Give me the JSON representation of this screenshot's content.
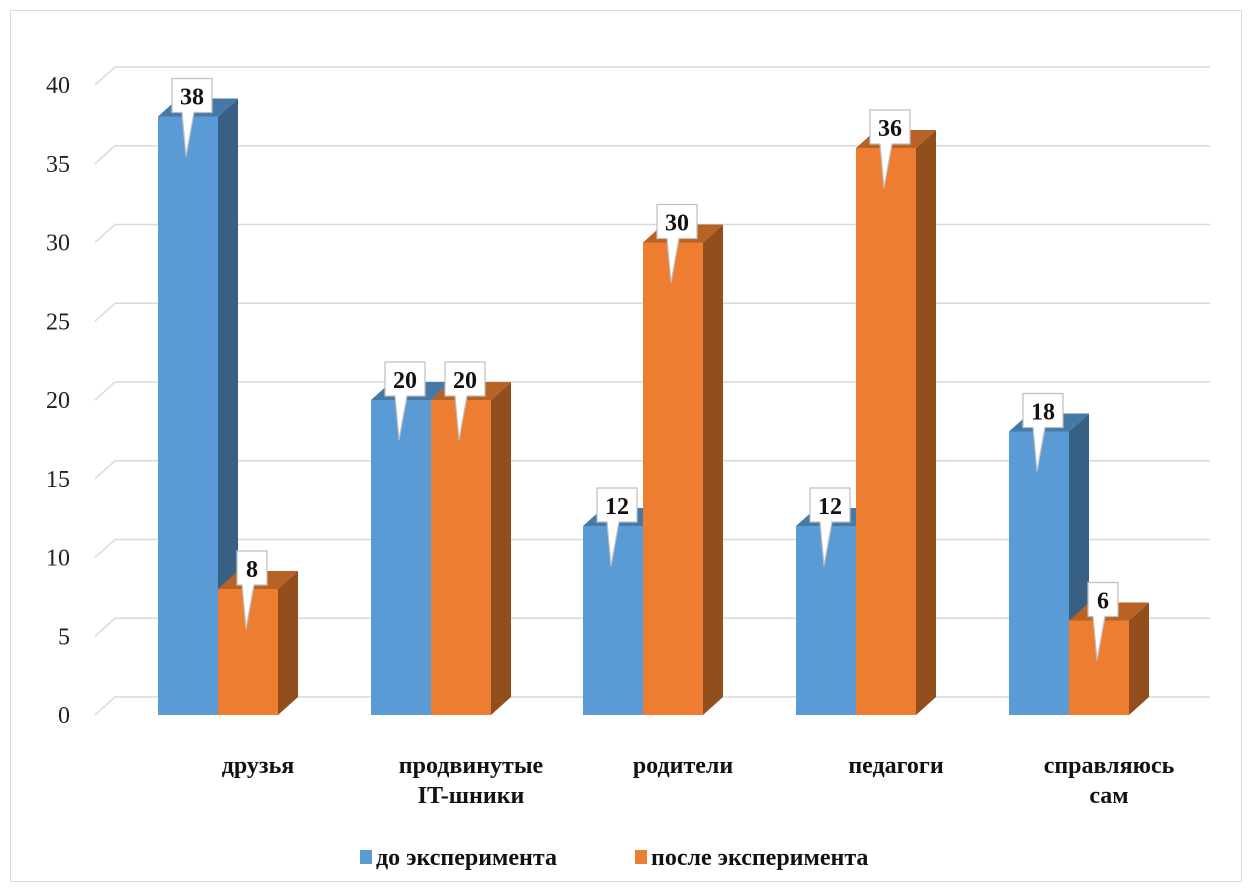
{
  "chart_data": {
    "type": "bar",
    "title": "",
    "xlabel": "",
    "ylabel": "",
    "ylim": [
      0,
      40
    ],
    "yticks": [
      0,
      5,
      10,
      15,
      20,
      25,
      30,
      35,
      40
    ],
    "grid": true,
    "legend_position": "bottom",
    "categories": [
      [
        "друзья"
      ],
      [
        "продвинутые",
        "IT-шники"
      ],
      [
        "родители"
      ],
      [
        "педагоги"
      ],
      [
        "справляюсь",
        "сам"
      ]
    ],
    "series": [
      {
        "name": "до эксперимента",
        "color": "#5b9bd5",
        "values": [
          38,
          20,
          12,
          12,
          18
        ]
      },
      {
        "name": "после эксперимента",
        "color": "#ed7d31",
        "values": [
          8,
          20,
          30,
          36,
          6
        ]
      }
    ]
  }
}
